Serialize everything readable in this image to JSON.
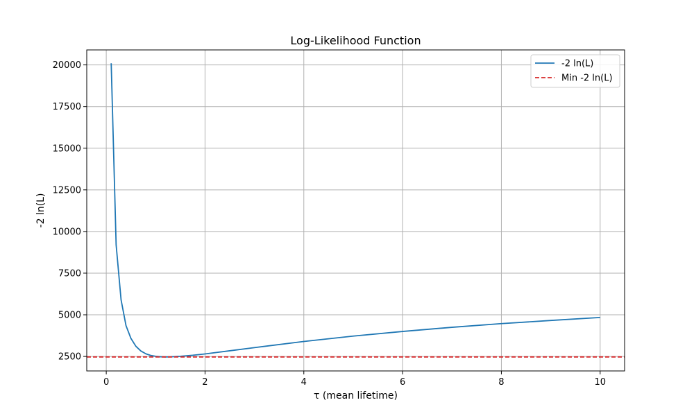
{
  "chart_data": {
    "type": "line",
    "title": "Log-Likelihood Function",
    "xlabel": "τ (mean lifetime)",
    "ylabel": "-2 ln(L)",
    "xlim": [
      -0.395,
      10.495
    ],
    "ylim": [
      1630,
      20900
    ],
    "xticks": [
      0,
      2,
      4,
      6,
      8,
      10
    ],
    "yticks": [
      2500,
      5000,
      7500,
      10000,
      12500,
      15000,
      17500,
      20000
    ],
    "xtick_labels": [
      "0",
      "2",
      "4",
      "6",
      "8",
      "10"
    ],
    "ytick_labels": [
      "2500",
      "5000",
      "7500",
      "10000",
      "12500",
      "15000",
      "17500",
      "20000"
    ],
    "grid": true,
    "legend_position": "top-right",
    "series": [
      {
        "name": "-2 ln(L)",
        "color": "#1f77b4",
        "style": "solid",
        "x": [
          0.1,
          0.2,
          0.3,
          0.4,
          0.5,
          0.6,
          0.7,
          0.8,
          0.9,
          1.0,
          1.1,
          1.2,
          1.3,
          1.5,
          1.75,
          2.0,
          2.5,
          3.0,
          4.0,
          5.0,
          6.0,
          7.0,
          8.0,
          9.0,
          10.0
        ],
        "y": [
          20100,
          9200,
          5900,
          4350,
          3580,
          3110,
          2830,
          2660,
          2560,
          2510,
          2480,
          2470,
          2475,
          2510,
          2570,
          2650,
          2840,
          3030,
          3400,
          3720,
          4000,
          4250,
          4470,
          4660,
          4840
        ]
      },
      {
        "name": "Min -2 ln(L)",
        "color": "#d62728",
        "style": "dashed",
        "x": [
          -0.395,
          10.495
        ],
        "y": [
          2470,
          2470
        ]
      }
    ]
  }
}
